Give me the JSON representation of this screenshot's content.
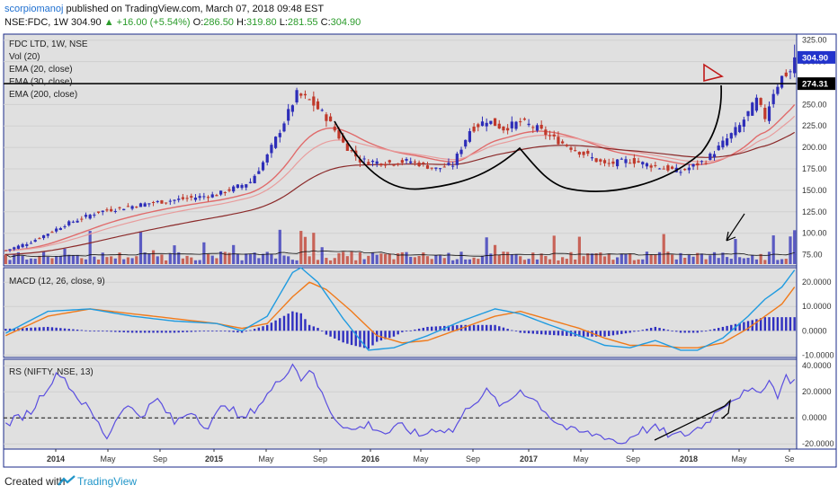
{
  "header": {
    "author": "scorpiomanoj",
    "published_text": "published on TradingView.com, March 07, 2018 09:48 EST",
    "symbol": "NSE:FDC, 1W",
    "last_price": "304.90",
    "change": "+16.00 (+5.54%)",
    "o_label": "O:",
    "o_value": "286.50",
    "h_label": "H:",
    "h_value": "319.80",
    "l_label": "L:",
    "l_value": "281.55",
    "c_label": "C:",
    "c_value": "304.90"
  },
  "footer": {
    "created_with": "Created with",
    "brand": "TradingView"
  },
  "colors": {
    "pane_bg": "#e0e0e0",
    "up_candle": "#2d2db8",
    "down_candle": "#c0392b",
    "ema20": "#e06b6b",
    "ema30": "#e89c9c",
    "ema200": "#8b2a2a",
    "macd": "#1f9be0",
    "signal": "#f07a1a",
    "hist": "#3030c0",
    "rs": "#5a4ee0",
    "support_line": "#000000",
    "price_tag_bg": "#2233cc"
  },
  "chart_data": [
    {
      "type": "candlestick",
      "pane": "price",
      "title": "FDC LTD, 1W, NSE",
      "legend": [
        "Vol (20)",
        "EMA (20, close)",
        "EMA (30, close)",
        "EMA (200, close)"
      ],
      "y_ticks": [
        "325.00",
        "300.00",
        "275.00",
        "250.00",
        "225.00",
        "200.00",
        "175.00",
        "150.00",
        "125.00",
        "100.00",
        "75.00"
      ],
      "ylim": [
        62,
        332
      ],
      "last_price_tag": "304.90",
      "level_tag": "274.31",
      "horizontal_level": 274.31,
      "x_ticks": [
        "2014",
        "May",
        "Sep",
        "2015",
        "May",
        "Sep",
        "2016",
        "May",
        "Sep",
        "2017",
        "May",
        "Sep",
        "2018",
        "May",
        "Se"
      ],
      "anchors_week_price": [
        [
          0,
          80
        ],
        [
          6,
          90
        ],
        [
          14,
          110
        ],
        [
          22,
          125
        ],
        [
          34,
          135
        ],
        [
          42,
          140
        ],
        [
          50,
          145
        ],
        [
          58,
          160
        ],
        [
          62,
          190
        ],
        [
          66,
          230
        ],
        [
          69,
          262
        ],
        [
          72,
          255
        ],
        [
          76,
          235
        ],
        [
          80,
          205
        ],
        [
          84,
          185
        ],
        [
          90,
          182
        ],
        [
          96,
          184
        ],
        [
          102,
          175
        ],
        [
          106,
          180
        ],
        [
          110,
          220
        ],
        [
          114,
          232
        ],
        [
          118,
          222
        ],
        [
          122,
          230
        ],
        [
          126,
          222
        ],
        [
          130,
          210
        ],
        [
          136,
          195
        ],
        [
          142,
          180
        ],
        [
          148,
          185
        ],
        [
          154,
          178
        ],
        [
          160,
          172
        ],
        [
          166,
          185
        ],
        [
          170,
          205
        ],
        [
          174,
          225
        ],
        [
          178,
          255
        ],
        [
          180,
          235
        ],
        [
          182,
          265
        ],
        [
          184,
          282
        ],
        [
          186,
          289
        ],
        [
          187,
          305
        ]
      ]
    },
    {
      "type": "bar",
      "pane": "volume",
      "name": "Vol (20)",
      "note": "volume bars overlaid at bottom of price pane, blue for up weeks, red for down weeks, with 20-period average line"
    },
    {
      "type": "line",
      "pane": "macd",
      "title": "MACD (12, 26, close, 9)",
      "y_ticks": [
        "20.0000",
        "10.0000",
        "0.0000",
        "-10.0000"
      ],
      "ylim": [
        -11,
        26
      ],
      "macd_anchors": [
        [
          0,
          -1
        ],
        [
          10,
          8
        ],
        [
          20,
          9
        ],
        [
          30,
          6
        ],
        [
          40,
          4
        ],
        [
          50,
          3
        ],
        [
          56,
          0
        ],
        [
          62,
          6
        ],
        [
          68,
          24
        ],
        [
          70,
          26
        ],
        [
          74,
          20
        ],
        [
          80,
          5
        ],
        [
          86,
          -8
        ],
        [
          92,
          -7
        ],
        [
          100,
          -2
        ],
        [
          108,
          4
        ],
        [
          116,
          9
        ],
        [
          122,
          7
        ],
        [
          128,
          3
        ],
        [
          136,
          -2
        ],
        [
          142,
          -6
        ],
        [
          148,
          -7
        ],
        [
          154,
          -4
        ],
        [
          160,
          -8
        ],
        [
          164,
          -8
        ],
        [
          170,
          -3
        ],
        [
          176,
          6
        ],
        [
          180,
          13
        ],
        [
          184,
          18
        ],
        [
          187,
          25
        ]
      ],
      "signal_anchors": [
        [
          0,
          -2
        ],
        [
          10,
          6
        ],
        [
          20,
          9
        ],
        [
          30,
          7
        ],
        [
          40,
          5
        ],
        [
          50,
          3
        ],
        [
          56,
          1
        ],
        [
          62,
          3
        ],
        [
          68,
          14
        ],
        [
          72,
          20
        ],
        [
          76,
          17
        ],
        [
          82,
          8
        ],
        [
          88,
          -2
        ],
        [
          94,
          -5
        ],
        [
          100,
          -4
        ],
        [
          108,
          1
        ],
        [
          116,
          6
        ],
        [
          122,
          8
        ],
        [
          128,
          5
        ],
        [
          136,
          1
        ],
        [
          142,
          -3
        ],
        [
          148,
          -6
        ],
        [
          154,
          -6
        ],
        [
          160,
          -7
        ],
        [
          164,
          -7
        ],
        [
          170,
          -5
        ],
        [
          176,
          1
        ],
        [
          180,
          6
        ],
        [
          184,
          11
        ],
        [
          187,
          18
        ]
      ]
    },
    {
      "type": "line",
      "pane": "rs",
      "title": "RS (NIFTY, NSE, 13)",
      "y_ticks": [
        "40.0000",
        "20.0000",
        "0.0000",
        "-20.0000"
      ],
      "ylim": [
        -24,
        45
      ],
      "zero_line": 0,
      "rs_anchors": [
        [
          0,
          -5
        ],
        [
          6,
          5
        ],
        [
          10,
          25
        ],
        [
          13,
          35
        ],
        [
          16,
          20
        ],
        [
          20,
          5
        ],
        [
          24,
          -15
        ],
        [
          28,
          10
        ],
        [
          32,
          2
        ],
        [
          36,
          14
        ],
        [
          40,
          -4
        ],
        [
          44,
          6
        ],
        [
          48,
          -8
        ],
        [
          52,
          12
        ],
        [
          56,
          -2
        ],
        [
          60,
          10
        ],
        [
          64,
          25
        ],
        [
          68,
          42
        ],
        [
          70,
          30
        ],
        [
          72,
          38
        ],
        [
          75,
          18
        ],
        [
          78,
          0
        ],
        [
          82,
          -10
        ],
        [
          86,
          -5
        ],
        [
          90,
          -12
        ],
        [
          94,
          -6
        ],
        [
          98,
          -14
        ],
        [
          102,
          -8
        ],
        [
          106,
          -10
        ],
        [
          110,
          10
        ],
        [
          114,
          20
        ],
        [
          118,
          8
        ],
        [
          122,
          22
        ],
        [
          126,
          12
        ],
        [
          130,
          -2
        ],
        [
          134,
          -10
        ],
        [
          138,
          -12
        ],
        [
          142,
          -14
        ],
        [
          146,
          -20
        ],
        [
          150,
          -10
        ],
        [
          154,
          -8
        ],
        [
          158,
          -14
        ],
        [
          162,
          -12
        ],
        [
          166,
          -4
        ],
        [
          170,
          10
        ],
        [
          174,
          18
        ],
        [
          178,
          20
        ],
        [
          181,
          28
        ],
        [
          183,
          18
        ],
        [
          185,
          31
        ],
        [
          187,
          28
        ]
      ]
    }
  ]
}
